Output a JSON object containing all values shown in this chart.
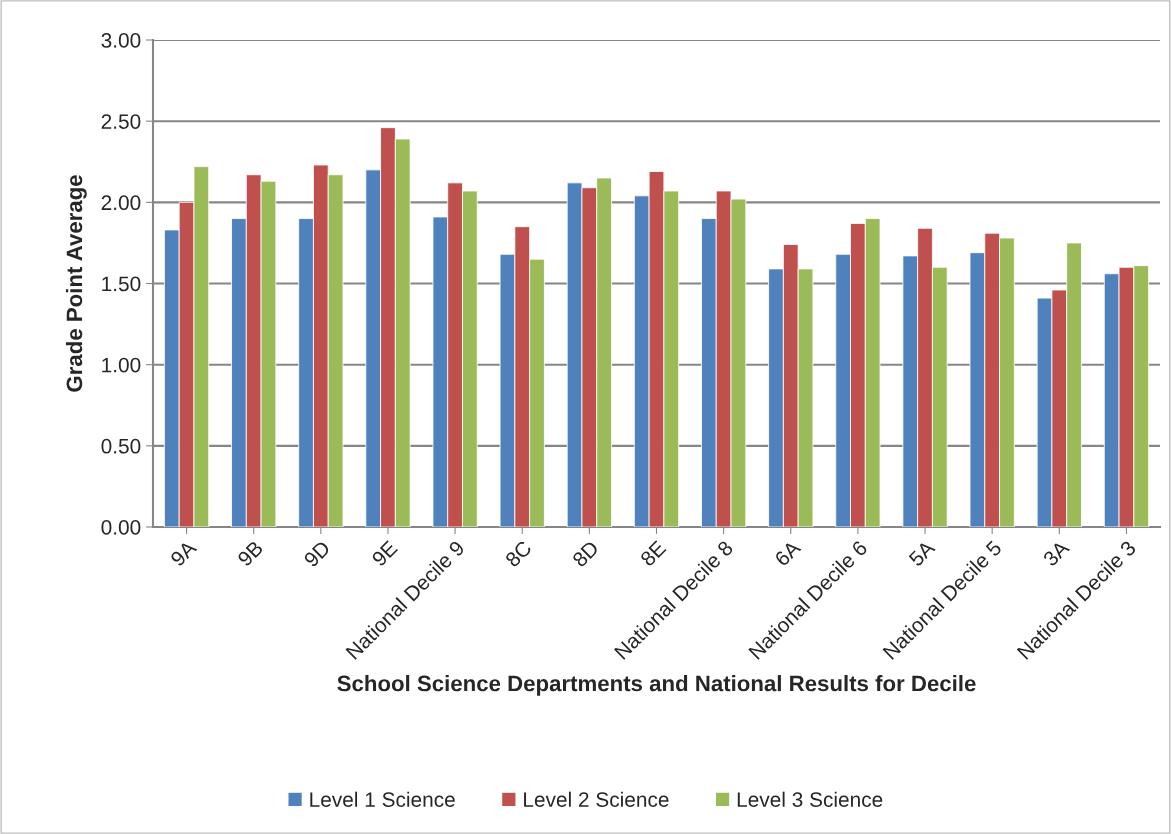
{
  "chart_data": {
    "type": "bar",
    "xlabel": "School Science Departments and National Results for Decile",
    "ylabel": "Grade Point Average",
    "categories": [
      "9A",
      "9B",
      "9D",
      "9E",
      "National Decile 9",
      "8C",
      "8D",
      "8E",
      "National Decile 8",
      "6A",
      "National Decile 6",
      "5A",
      "National Decile 5",
      "3A",
      "National Decile 3"
    ],
    "series": [
      {
        "name": "Level 1 Science",
        "color": "#4f81bd",
        "values": [
          1.83,
          1.9,
          1.9,
          2.2,
          1.91,
          1.68,
          2.12,
          2.04,
          1.9,
          1.59,
          1.68,
          1.67,
          1.69,
          1.41,
          1.56
        ]
      },
      {
        "name": "Level 2 Science",
        "color": "#c0504d",
        "values": [
          2.0,
          2.17,
          2.23,
          2.46,
          2.12,
          1.85,
          2.09,
          2.19,
          2.07,
          1.74,
          1.87,
          1.84,
          1.81,
          1.46,
          1.6
        ]
      },
      {
        "name": "Level 3 Science",
        "color": "#9bbb59",
        "values": [
          2.22,
          2.13,
          2.17,
          2.39,
          2.07,
          1.65,
          2.15,
          2.07,
          2.02,
          1.59,
          1.9,
          1.6,
          1.78,
          1.75,
          1.61
        ]
      }
    ],
    "ylim": [
      0,
      3
    ],
    "yticks": [
      {
        "value": 0,
        "label": "0.00"
      },
      {
        "value": 0.5,
        "label": "0.50"
      },
      {
        "value": 1,
        "label": "1.00"
      },
      {
        "value": 1.5,
        "label": "1.50"
      },
      {
        "value": 2,
        "label": "2.00"
      },
      {
        "value": 2.5,
        "label": "2.50"
      },
      {
        "value": 3,
        "label": "3.00"
      }
    ],
    "grid": "y",
    "legend": "bottom"
  }
}
